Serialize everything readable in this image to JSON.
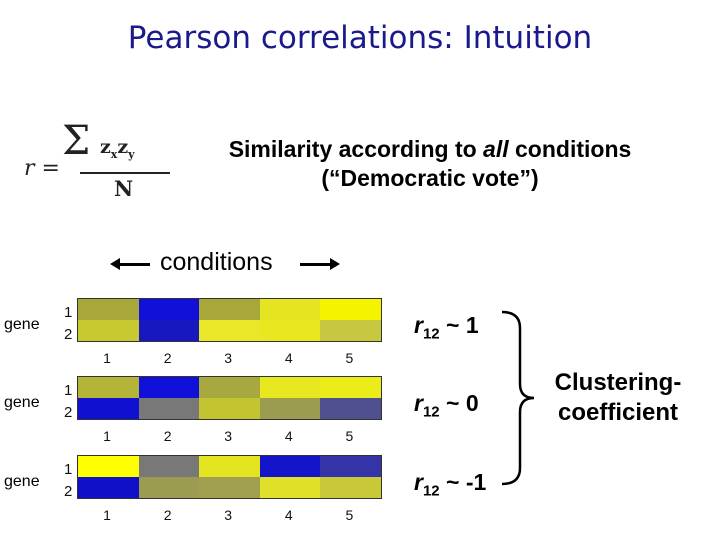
{
  "title": "Pearson correlations: Intuition",
  "formula": {
    "lhs": "r =",
    "sigma": "Σ",
    "z1": "z",
    "s1": "x",
    "z2": "z",
    "s2": "y",
    "denominator": "N"
  },
  "similarity": {
    "line1_pre": "Similarity according to ",
    "line1_em": "all",
    "line1_post": " conditions",
    "line2": "(“Democratic vote”)"
  },
  "conditions_label": "conditions",
  "gene_label": "gene",
  "row_labels": [
    "1",
    "2"
  ],
  "x_ticks": [
    "1",
    "2",
    "3",
    "4",
    "5"
  ],
  "colors": {
    "yellow": "#ffff00",
    "blue": "#1010c8",
    "title": "#1a1a8c"
  },
  "panels": [
    {
      "cells": [
        [
          "#a8a83a",
          "#1010d8",
          "#a8a83a",
          "#e4e420",
          "#f4f400"
        ],
        [
          "#c8c830",
          "#1818c0",
          "#e8e828",
          "#e8e820",
          "#c8c840"
        ]
      ],
      "r_symbol": "r",
      "r_sub": "12",
      "r_value": " ~ 1"
    },
    {
      "cells": [
        [
          "#b4b438",
          "#1010d8",
          "#a8a840",
          "#e8e820",
          "#ecec18"
        ],
        [
          "#1010d0",
          "#787878",
          "#c4c430",
          "#9c9c50",
          "#505090"
        ]
      ],
      "r_symbol": "r",
      "r_sub": "12",
      "r_value": " ~ 0"
    },
    {
      "cells": [
        [
          "#ffff00",
          "#787878",
          "#e4e420",
          "#1414c8",
          "#3434a8"
        ],
        [
          "#1010c8",
          "#9c9c50",
          "#a0a050",
          "#e0e028",
          "#c8c838"
        ]
      ],
      "r_symbol": "r",
      "r_sub": "12",
      "r_value": " ~ -1"
    }
  ],
  "clustering": {
    "line1": "Clustering-",
    "line2": "coefficient"
  }
}
